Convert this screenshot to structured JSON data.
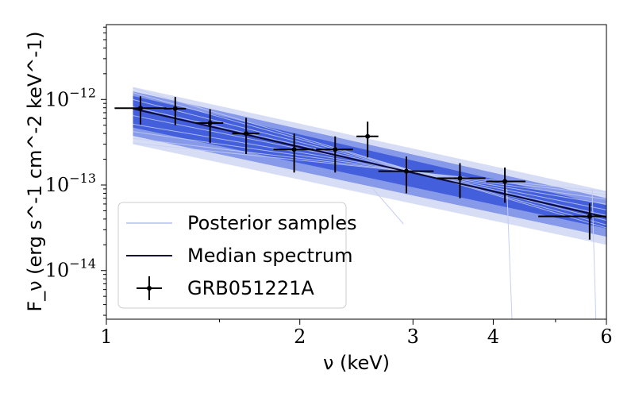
{
  "chart_data": {
    "type": "line",
    "scale": {
      "x": "log",
      "y": "log"
    },
    "xlim": [
      1,
      6
    ],
    "ylim": [
      2.7e-15,
      7.5e-12
    ],
    "xlabel": "ν (keV)",
    "ylabel": "F_ν (erg s^-1 cm^-2 keV^-1)",
    "x_ticks": [
      {
        "value": 1,
        "label": "1"
      },
      {
        "value": 2,
        "label": "2"
      },
      {
        "value": 3,
        "label": "3"
      },
      {
        "value": 4,
        "label": "4"
      },
      {
        "value": 6,
        "label": "6"
      }
    ],
    "y_ticks": [
      {
        "value": 1e-14,
        "base": "10",
        "exp": "−14"
      },
      {
        "value": 1e-13,
        "base": "10",
        "exp": "−13"
      },
      {
        "value": 1e-12,
        "base": "10",
        "exp": "−12"
      }
    ],
    "legend": {
      "placement": "lower-left",
      "entries": [
        {
          "label": "Posterior samples",
          "kind": "band"
        },
        {
          "label": "Median spectrum",
          "kind": "line"
        },
        {
          "label": "GRB051221A",
          "kind": "errorbar"
        }
      ]
    },
    "median_spectrum": {
      "x": [
        1.1,
        6.0
      ],
      "y": [
        7.8e-13,
        4.2e-14
      ]
    },
    "posterior_band": {
      "x": [
        1.1,
        6.0
      ],
      "lower": [
        3e-13,
        2e-14
      ],
      "upper": [
        1.4e-12,
        8.5e-14
      ],
      "core_lower": [
        4.7e-13,
        3.1e-14
      ],
      "core_upper": [
        1.1e-12,
        5.8e-14
      ]
    },
    "series": [
      {
        "name": "GRB051221A",
        "points": [
          {
            "x": 1.13,
            "y": 7.9e-13,
            "xerr": [
              0.1,
              0.11
            ],
            "yerr": [
              2.8e-13,
              3e-13
            ]
          },
          {
            "x": 1.28,
            "y": 7.8e-13,
            "xerr": [
              0.05,
              0.05
            ],
            "yerr": [
              2.8e-13,
              2.9e-13
            ]
          },
          {
            "x": 1.45,
            "y": 5.3e-13,
            "xerr": [
              0.07,
              0.07
            ],
            "yerr": [
              2.2e-13,
              2.4e-13
            ]
          },
          {
            "x": 1.65,
            "y": 4e-13,
            "xerr": [
              0.08,
              0.08
            ],
            "yerr": [
              1.7e-13,
              2.1e-13
            ]
          },
          {
            "x": 1.96,
            "y": 2.6e-13,
            "xerr": [
              0.14,
              0.14
            ],
            "yerr": [
              1.2e-13,
              1.4e-13
            ]
          },
          {
            "x": 2.27,
            "y": 2.6e-13,
            "xerr": [
              0.15,
              0.15
            ],
            "yerr": [
              1.2e-13,
              1.1e-13
            ]
          },
          {
            "x": 2.55,
            "y": 3.7e-13,
            "xerr": [
              0.1,
              0.1
            ],
            "yerr": [
              1.6e-13,
              1.8e-13
            ]
          },
          {
            "x": 2.93,
            "y": 1.45e-13,
            "xerr": [
              0.28,
              0.3
            ],
            "yerr": [
              6.5e-14,
              7e-14
            ]
          },
          {
            "x": 3.55,
            "y": 1.2e-13,
            "xerr": [
              0.28,
              0.34
            ],
            "yerr": [
              5e-14,
              6e-14
            ]
          },
          {
            "x": 4.17,
            "y": 1.1e-13,
            "xerr": [
              0.27,
              0.32
            ],
            "yerr": [
              4.8e-14,
              5e-14
            ]
          },
          {
            "x": 5.65,
            "y": 4.3e-14,
            "xerr": [
              0.95,
              0.35
            ],
            "yerr": [
              2e-14,
              1.8e-14
            ]
          }
        ]
      }
    ],
    "colors": {
      "band_outer": "#c9d1f2",
      "band_mid": "#6c82e4",
      "band_core": "#3d59d9",
      "sample_line": "#c5cef3",
      "median": "#0b0b3b",
      "points": "#000000"
    }
  }
}
